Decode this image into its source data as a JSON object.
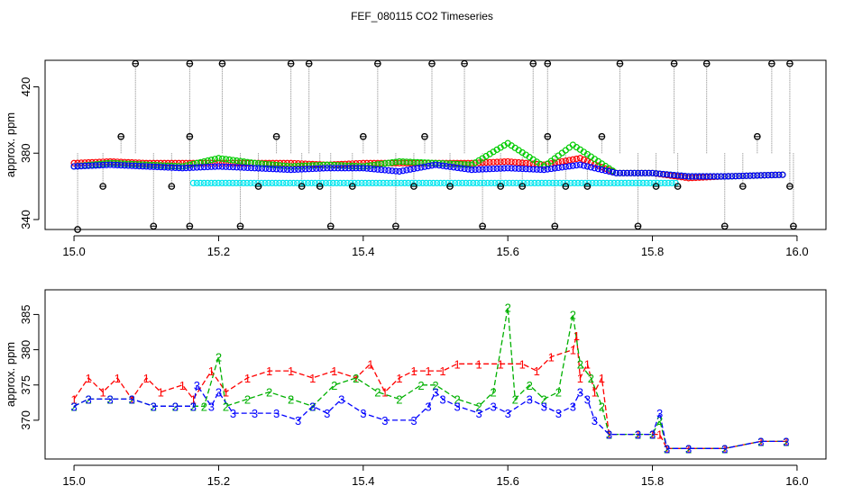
{
  "figure": {
    "title": "FEF_080115  CO2 Timeseries"
  },
  "chart_data": [
    {
      "type": "scatter",
      "title": "",
      "xlabel": "",
      "ylabel": "approx. ppm",
      "xlim": [
        14.96,
        16.04
      ],
      "ylim": [
        334,
        436
      ],
      "x_ticks": [
        15.0,
        15.2,
        15.4,
        15.6,
        15.8,
        16.0
      ],
      "x_tick_labels": [
        "15.0",
        "15.2",
        "15.4",
        "15.6",
        "15.8",
        "16.0"
      ],
      "y_ticks": [
        340,
        380,
        420
      ],
      "y_tick_labels": [
        "340",
        "380",
        "420"
      ],
      "grid": false,
      "series": [
        {
          "color": "#ff0000",
          "marker": "circle",
          "values": [
            [
              15.0,
              374
            ],
            [
              15.05,
              375
            ],
            [
              15.1,
              374
            ],
            [
              15.15,
              374
            ],
            [
              15.2,
              374
            ],
            [
              15.25,
              374
            ],
            [
              15.3,
              374
            ],
            [
              15.35,
              373
            ],
            [
              15.4,
              374
            ],
            [
              15.45,
              374
            ],
            [
              15.5,
              374
            ],
            [
              15.55,
              374
            ],
            [
              15.6,
              375
            ],
            [
              15.65,
              373
            ],
            [
              15.7,
              377
            ],
            [
              15.75,
              368
            ],
            [
              15.8,
              368
            ],
            [
              15.85,
              365
            ],
            [
              15.9,
              366
            ],
            [
              15.98,
              367
            ]
          ]
        },
        {
          "color": "#00cc00",
          "marker": "circle",
          "values": [
            [
              15.0,
              372
            ],
            [
              15.05,
              374
            ],
            [
              15.1,
              373
            ],
            [
              15.15,
              372
            ],
            [
              15.2,
              377
            ],
            [
              15.25,
              374
            ],
            [
              15.3,
              372
            ],
            [
              15.35,
              373
            ],
            [
              15.4,
              372
            ],
            [
              15.45,
              375
            ],
            [
              15.5,
              374
            ],
            [
              15.55,
              373
            ],
            [
              15.6,
              386
            ],
            [
              15.65,
              372
            ],
            [
              15.69,
              385
            ],
            [
              15.75,
              368
            ],
            [
              15.8,
              368
            ],
            [
              15.85,
              366
            ],
            [
              15.9,
              366
            ],
            [
              15.98,
              367
            ]
          ]
        },
        {
          "color": "#0000ff",
          "marker": "circle",
          "values": [
            [
              15.0,
              372
            ],
            [
              15.05,
              373
            ],
            [
              15.1,
              372
            ],
            [
              15.15,
              371
            ],
            [
              15.2,
              372
            ],
            [
              15.25,
              371
            ],
            [
              15.3,
              370
            ],
            [
              15.35,
              371
            ],
            [
              15.4,
              371
            ],
            [
              15.45,
              369
            ],
            [
              15.5,
              373
            ],
            [
              15.55,
              370
            ],
            [
              15.6,
              371
            ],
            [
              15.65,
              370
            ],
            [
              15.7,
              373
            ],
            [
              15.75,
              368
            ],
            [
              15.8,
              368
            ],
            [
              15.85,
              366
            ],
            [
              15.9,
              366
            ],
            [
              15.98,
              367
            ]
          ]
        },
        {
          "color": "#00e5ee",
          "marker": "circle",
          "values": [
            [
              15.165,
              362
            ],
            [
              15.497,
              362
            ],
            [
              15.832,
              362
            ]
          ]
        },
        {
          "color": "#000000",
          "marker": "crossed-circle",
          "values": [
            [
              15.005,
              334
            ],
            [
              15.04,
              360
            ],
            [
              15.065,
              390
            ],
            [
              15.085,
              434
            ],
            [
              15.11,
              336
            ],
            [
              15.135,
              360
            ],
            [
              15.16,
              390
            ],
            [
              15.16,
              336
            ],
            [
              15.16,
              434
            ],
            [
              15.205,
              434
            ],
            [
              15.23,
              336
            ],
            [
              15.255,
              360
            ],
            [
              15.28,
              390
            ],
            [
              15.3,
              434
            ],
            [
              15.315,
              360
            ],
            [
              15.325,
              434
            ],
            [
              15.34,
              360
            ],
            [
              15.355,
              336
            ],
            [
              15.385,
              360
            ],
            [
              15.4,
              390
            ],
            [
              15.42,
              434
            ],
            [
              15.445,
              336
            ],
            [
              15.47,
              360
            ],
            [
              15.485,
              390
            ],
            [
              15.495,
              434
            ],
            [
              15.52,
              360
            ],
            [
              15.54,
              434
            ],
            [
              15.565,
              336
            ],
            [
              15.59,
              360
            ],
            [
              15.62,
              360
            ],
            [
              15.635,
              434
            ],
            [
              15.655,
              434
            ],
            [
              15.655,
              390
            ],
            [
              15.665,
              336
            ],
            [
              15.68,
              360
            ],
            [
              15.71,
              360
            ],
            [
              15.73,
              390
            ],
            [
              15.755,
              434
            ],
            [
              15.78,
              336
            ],
            [
              15.805,
              360
            ],
            [
              15.83,
              434
            ],
            [
              15.835,
              360
            ],
            [
              15.875,
              434
            ],
            [
              15.9,
              336
            ],
            [
              15.925,
              360
            ],
            [
              15.945,
              390
            ],
            [
              15.965,
              434
            ],
            [
              15.99,
              434
            ],
            [
              15.99,
              360
            ],
            [
              15.995,
              336
            ]
          ]
        }
      ]
    },
    {
      "type": "line",
      "title": "",
      "xlabel": "",
      "ylabel": "approx. ppm",
      "xlim": [
        14.96,
        16.04
      ],
      "ylim": [
        364.5,
        388.5
      ],
      "x_ticks": [
        15.0,
        15.2,
        15.4,
        15.6,
        15.8,
        16.0
      ],
      "x_tick_labels": [
        "15.0",
        "15.2",
        "15.4",
        "15.6",
        "15.8",
        "16.0"
      ],
      "y_ticks": [
        370,
        375,
        380,
        385
      ],
      "y_tick_labels": [
        "370",
        "375",
        "380",
        "385"
      ],
      "grid": false,
      "series": [
        {
          "color": "#ff0000",
          "marker": "1",
          "values": [
            [
              15.0,
              373
            ],
            [
              15.02,
              376
            ],
            [
              15.04,
              374
            ],
            [
              15.06,
              376
            ],
            [
              15.08,
              373
            ],
            [
              15.1,
              376
            ],
            [
              15.12,
              374
            ],
            [
              15.15,
              375
            ],
            [
              15.165,
              373
            ],
            [
              15.19,
              377
            ],
            [
              15.21,
              374
            ],
            [
              15.24,
              376
            ],
            [
              15.27,
              377
            ],
            [
              15.3,
              377
            ],
            [
              15.33,
              376
            ],
            [
              15.36,
              377
            ],
            [
              15.39,
              376
            ],
            [
              15.41,
              378
            ],
            [
              15.43,
              374
            ],
            [
              15.45,
              376
            ],
            [
              15.47,
              377
            ],
            [
              15.49,
              377
            ],
            [
              15.51,
              377
            ],
            [
              15.53,
              378
            ],
            [
              15.56,
              378
            ],
            [
              15.59,
              378
            ],
            [
              15.62,
              378
            ],
            [
              15.64,
              377
            ],
            [
              15.66,
              379
            ],
            [
              15.69,
              380
            ],
            [
              15.695,
              382
            ],
            [
              15.7,
              376
            ],
            [
              15.71,
              378
            ],
            [
              15.72,
              374
            ],
            [
              15.73,
              376
            ],
            [
              15.74,
              368
            ],
            [
              15.78,
              368
            ],
            [
              15.8,
              368
            ],
            [
              15.81,
              368
            ],
            [
              15.82,
              366
            ],
            [
              15.85,
              366
            ],
            [
              15.9,
              366
            ],
            [
              15.95,
              367
            ],
            [
              15.985,
              367
            ]
          ]
        },
        {
          "color": "#00b000",
          "marker": "2",
          "values": [
            [
              15.0,
              372
            ],
            [
              15.02,
              373
            ],
            [
              15.05,
              373
            ],
            [
              15.08,
              373
            ],
            [
              15.11,
              372
            ],
            [
              15.14,
              372
            ],
            [
              15.165,
              372
            ],
            [
              15.18,
              372
            ],
            [
              15.2,
              379
            ],
            [
              15.21,
              372
            ],
            [
              15.24,
              373
            ],
            [
              15.27,
              374
            ],
            [
              15.3,
              373
            ],
            [
              15.33,
              372
            ],
            [
              15.36,
              375
            ],
            [
              15.39,
              376
            ],
            [
              15.42,
              374
            ],
            [
              15.45,
              373
            ],
            [
              15.48,
              375
            ],
            [
              15.5,
              375
            ],
            [
              15.53,
              373
            ],
            [
              15.56,
              372
            ],
            [
              15.58,
              374
            ],
            [
              15.6,
              386
            ],
            [
              15.61,
              373
            ],
            [
              15.63,
              375
            ],
            [
              15.65,
              373
            ],
            [
              15.67,
              374
            ],
            [
              15.69,
              385
            ],
            [
              15.7,
              378
            ],
            [
              15.715,
              376
            ],
            [
              15.73,
              372
            ],
            [
              15.74,
              368
            ],
            [
              15.78,
              368
            ],
            [
              15.8,
              368
            ],
            [
              15.81,
              370
            ],
            [
              15.82,
              366
            ],
            [
              15.85,
              366
            ],
            [
              15.9,
              366
            ],
            [
              15.95,
              367
            ],
            [
              15.985,
              367
            ]
          ]
        },
        {
          "color": "#0000ff",
          "marker": "3",
          "values": [
            [
              15.0,
              372
            ],
            [
              15.02,
              373
            ],
            [
              15.05,
              373
            ],
            [
              15.08,
              373
            ],
            [
              15.11,
              372
            ],
            [
              15.14,
              372
            ],
            [
              15.165,
              372
            ],
            [
              15.17,
              375
            ],
            [
              15.19,
              372
            ],
            [
              15.2,
              374
            ],
            [
              15.22,
              371
            ],
            [
              15.25,
              371
            ],
            [
              15.28,
              371
            ],
            [
              15.31,
              370
            ],
            [
              15.33,
              372
            ],
            [
              15.35,
              371
            ],
            [
              15.37,
              373
            ],
            [
              15.4,
              371
            ],
            [
              15.43,
              370
            ],
            [
              15.47,
              370
            ],
            [
              15.49,
              372
            ],
            [
              15.5,
              374
            ],
            [
              15.51,
              373
            ],
            [
              15.53,
              372
            ],
            [
              15.56,
              371
            ],
            [
              15.58,
              372
            ],
            [
              15.6,
              371
            ],
            [
              15.63,
              373
            ],
            [
              15.65,
              372
            ],
            [
              15.67,
              371
            ],
            [
              15.69,
              372
            ],
            [
              15.7,
              374
            ],
            [
              15.71,
              373
            ],
            [
              15.72,
              370
            ],
            [
              15.74,
              368
            ],
            [
              15.78,
              368
            ],
            [
              15.8,
              368
            ],
            [
              15.81,
              371
            ],
            [
              15.82,
              366
            ],
            [
              15.85,
              366
            ],
            [
              15.9,
              366
            ],
            [
              15.95,
              367
            ],
            [
              15.985,
              367
            ]
          ]
        }
      ]
    }
  ]
}
